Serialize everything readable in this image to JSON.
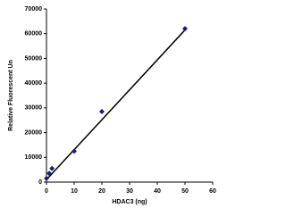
{
  "chart_data": {
    "type": "scatter",
    "xlabel": "HDAC3 (ng)",
    "ylabel": "Relative Fluorescent Un",
    "x": [
      0,
      1,
      2,
      10,
      20,
      50
    ],
    "values": [
      1500,
      3500,
      5500,
      12500,
      28500,
      62000
    ],
    "color": "#1c1c78",
    "trendline": {
      "x": [
        0,
        50
      ],
      "values": [
        1000,
        61500
      ],
      "color": "#000000"
    },
    "xlim": [
      0,
      60
    ],
    "ylim": [
      0,
      70000
    ],
    "xticks": [
      0,
      10,
      20,
      30,
      40,
      50,
      60
    ],
    "yticks": [
      0,
      10000,
      20000,
      30000,
      40000,
      50000,
      60000,
      70000
    ],
    "grid": false
  }
}
